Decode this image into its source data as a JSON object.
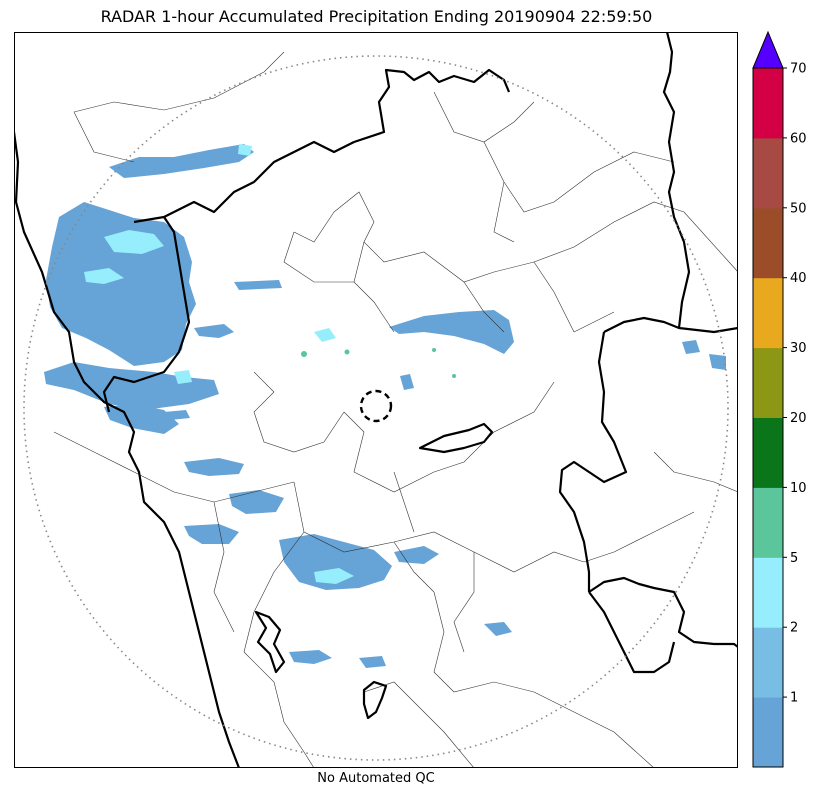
{
  "title": "RADAR 1-hour Accumulated Precipitation Ending 20190904 22:59:50",
  "footer_note": "No Automated QC",
  "colorbar": {
    "levels": [
      "1",
      "2",
      "5",
      "10",
      "20",
      "30",
      "40",
      "50",
      "60",
      "70"
    ],
    "colors": [
      "#66a3d6",
      "#78bde3",
      "#96eefd",
      "#5bc59b",
      "#0b7519",
      "#8d9716",
      "#e9a91e",
      "#9b4d2a",
      "#a74a44",
      "#d40045"
    ],
    "extend_color": "#5500ff"
  },
  "map": {
    "radar_range_ring": "dotted",
    "radar_site_marker": "dashed circle",
    "precip_light_color": "#66a3d6",
    "precip_moderate_color": "#96eefd",
    "precip_heavy_color": "#5bc59b",
    "boundary_color": "#000000"
  }
}
